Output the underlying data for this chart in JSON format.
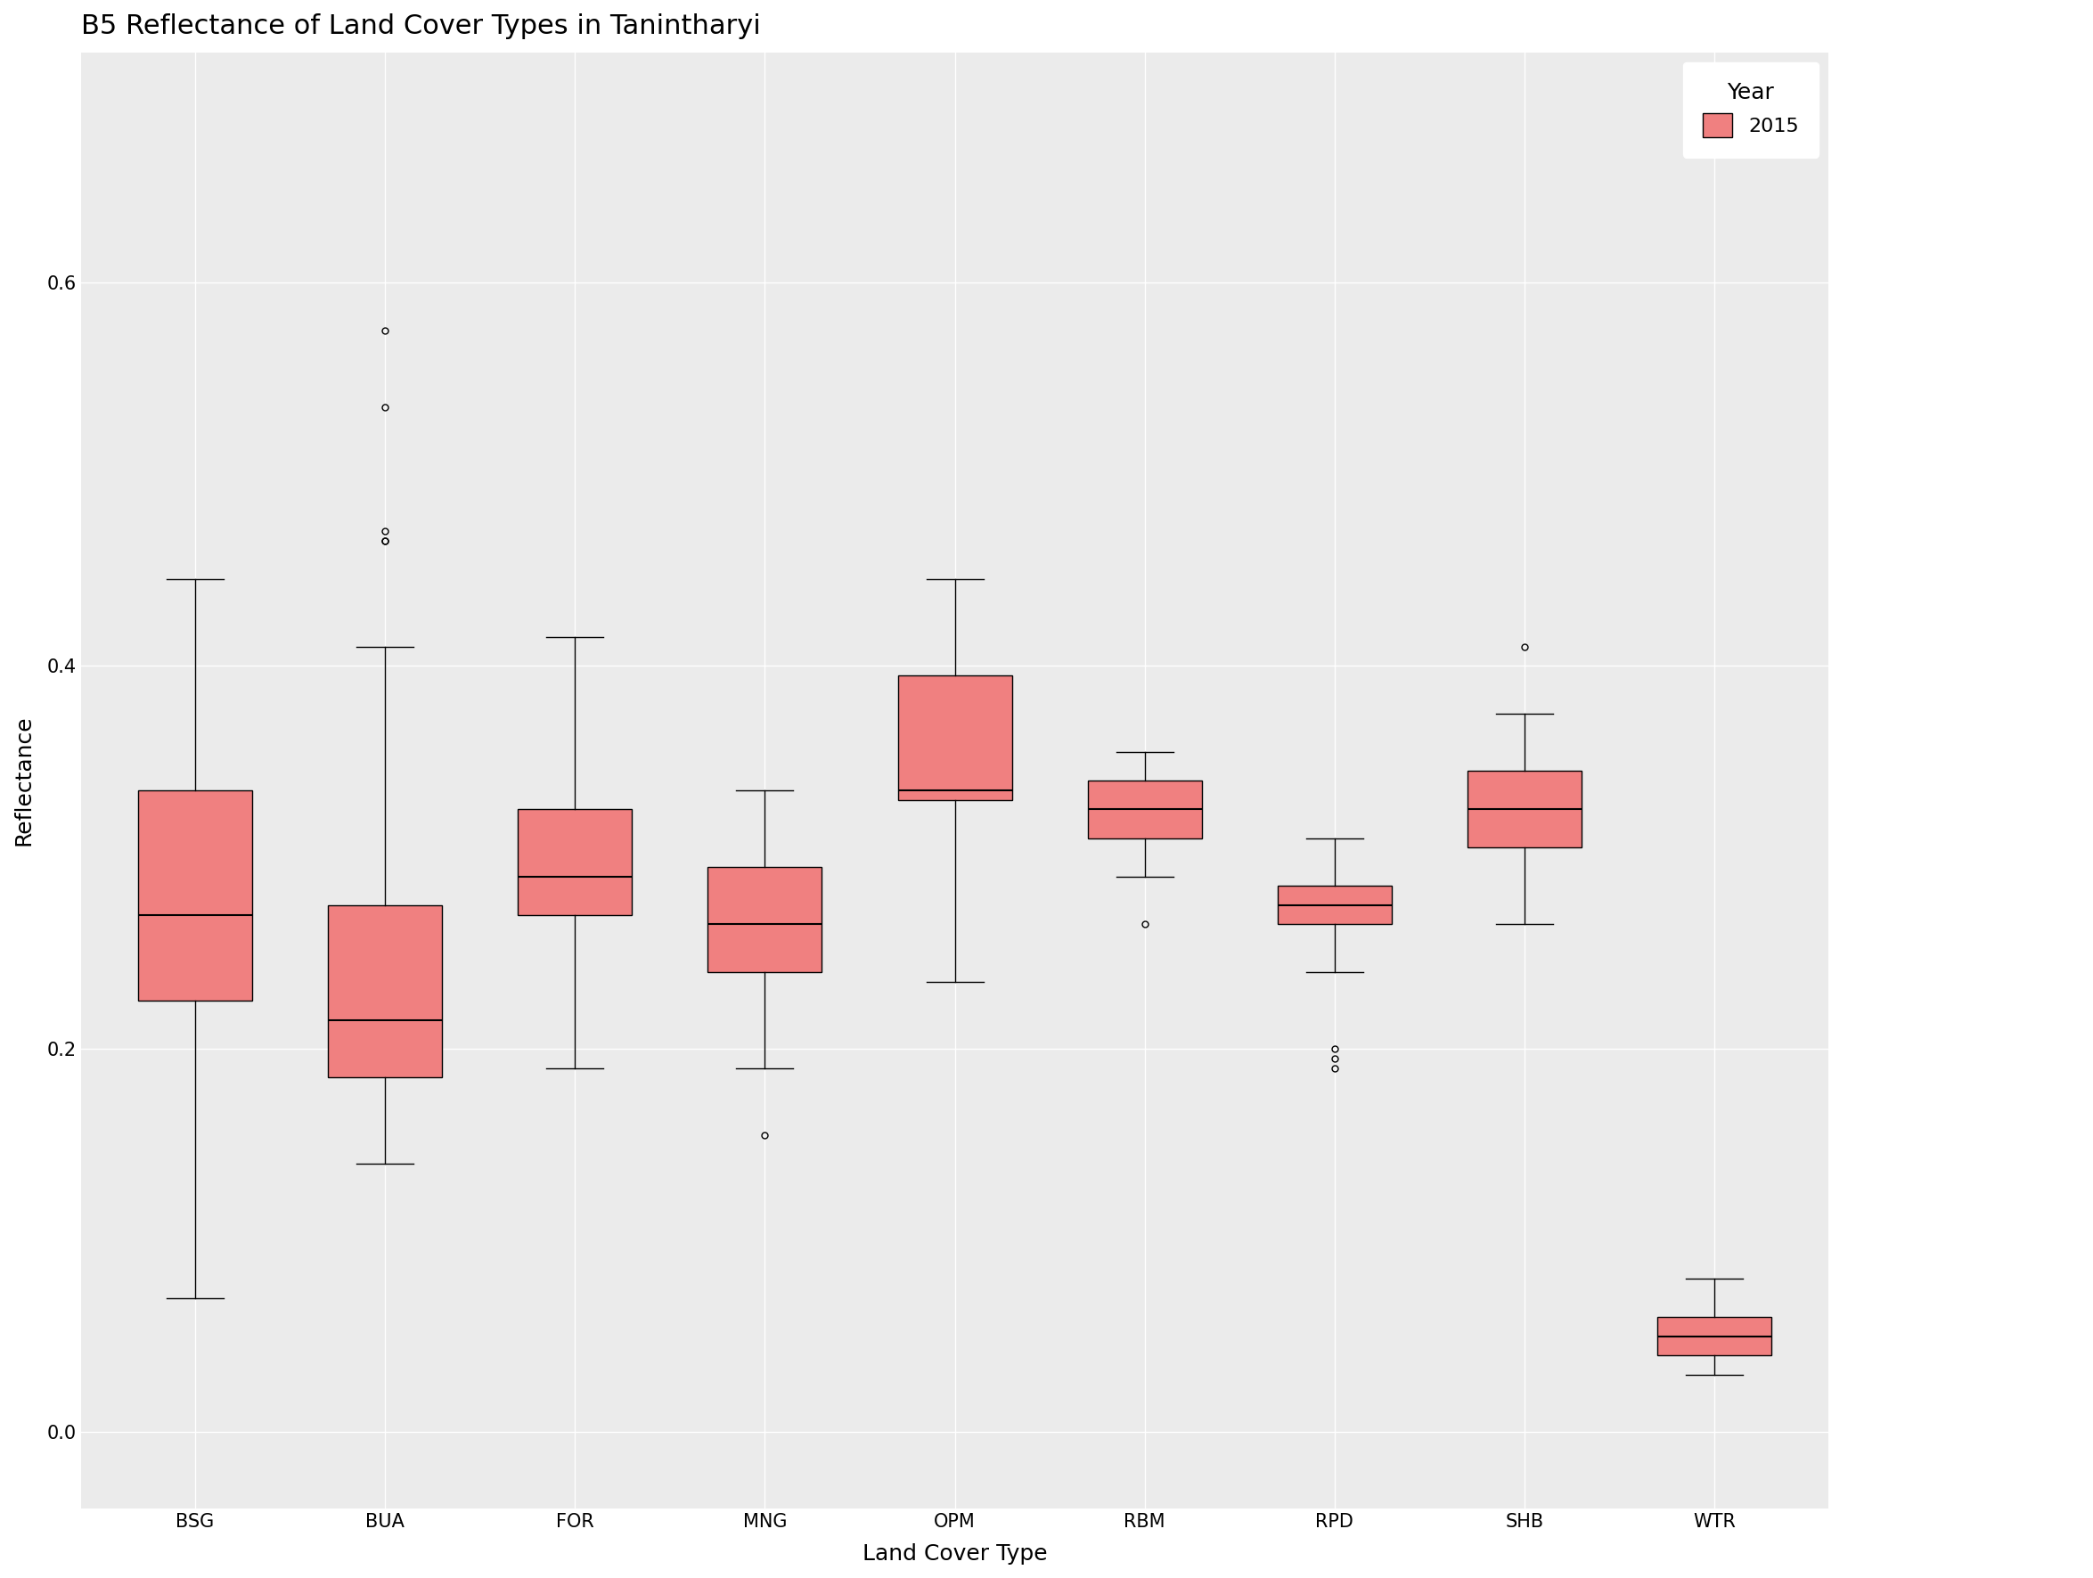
{
  "title": "B5 Reflectance of Land Cover Types in Tanintharyi",
  "xlabel": "Land Cover Type",
  "ylabel": "Reflectance",
  "categories": [
    "BSG",
    "BUA",
    "FOR",
    "MNG",
    "OPM",
    "RBM",
    "RPD",
    "SHB",
    "WTR"
  ],
  "box_color": "#F08080",
  "box_edge_color": "#000000",
  "median_color": "#000000",
  "whisker_color": "#000000",
  "flier_color": "#000000",
  "background_color": "#EBEBEB",
  "grid_color": "#FFFFFF",
  "ylim": [
    -0.04,
    0.72
  ],
  "yticks": [
    0.0,
    0.2,
    0.4,
    0.6
  ],
  "boxes": {
    "BSG": {
      "q1": 0.225,
      "median": 0.27,
      "q3": 0.335,
      "whislo": 0.07,
      "whishi": 0.445,
      "fliers": []
    },
    "BUA": {
      "q1": 0.185,
      "median": 0.215,
      "q3": 0.275,
      "whislo": 0.14,
      "whishi": 0.41,
      "fliers": [
        0.465,
        0.465,
        0.47,
        0.535,
        0.575
      ]
    },
    "FOR": {
      "q1": 0.27,
      "median": 0.29,
      "q3": 0.325,
      "whislo": 0.19,
      "whishi": 0.415,
      "fliers": []
    },
    "MNG": {
      "q1": 0.24,
      "median": 0.265,
      "q3": 0.295,
      "whislo": 0.19,
      "whishi": 0.335,
      "fliers": [
        0.155
      ]
    },
    "OPM": {
      "q1": 0.33,
      "median": 0.335,
      "q3": 0.395,
      "whislo": 0.235,
      "whishi": 0.445,
      "fliers": []
    },
    "RBM": {
      "q1": 0.31,
      "median": 0.325,
      "q3": 0.34,
      "whislo": 0.29,
      "whishi": 0.355,
      "fliers": [
        0.265
      ]
    },
    "RPD": {
      "q1": 0.265,
      "median": 0.275,
      "q3": 0.285,
      "whislo": 0.24,
      "whishi": 0.31,
      "fliers": [
        0.19,
        0.195,
        0.2
      ]
    },
    "SHB": {
      "q1": 0.305,
      "median": 0.325,
      "q3": 0.345,
      "whislo": 0.265,
      "whishi": 0.375,
      "fliers": [
        0.41
      ]
    },
    "WTR": {
      "q1": 0.04,
      "median": 0.05,
      "q3": 0.06,
      "whislo": 0.03,
      "whishi": 0.08,
      "fliers": []
    }
  },
  "legend_title": "Year",
  "legend_label": "2015",
  "title_fontsize": 22,
  "axis_label_fontsize": 18,
  "tick_fontsize": 15,
  "legend_fontsize": 16
}
